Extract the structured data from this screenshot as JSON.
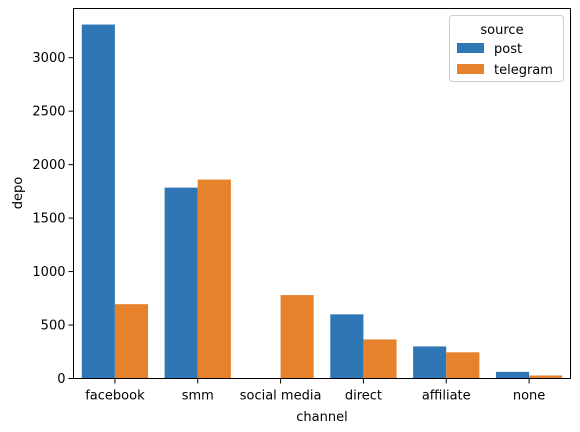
{
  "chart_data": {
    "type": "bar",
    "xlabel": "channel",
    "ylabel": "depo",
    "categories": [
      "facebook",
      "smm",
      "social media",
      "direct",
      "affiliate",
      "none"
    ],
    "series": [
      {
        "name": "post",
        "color": "#2f77b4",
        "values": [
          3310,
          1785,
          0,
          600,
          300,
          62
        ]
      },
      {
        "name": "telegram",
        "color": "#e6822b",
        "values": [
          695,
          1860,
          780,
          365,
          245,
          28
        ]
      }
    ],
    "ylim": [
      0,
      3460
    ],
    "yticks": [
      0,
      500,
      1000,
      1500,
      2000,
      2500,
      3000
    ],
    "legend": {
      "title": "source",
      "position": "top-right"
    },
    "grid": false
  }
}
